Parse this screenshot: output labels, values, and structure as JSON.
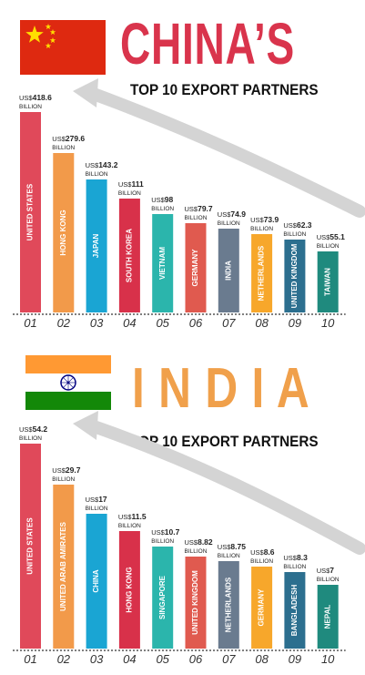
{
  "china": {
    "title": "CHINA’S",
    "subtitle": "TOP 10 EXPORT PARTNERS",
    "title_color": "#d9344c",
    "flag_color": "#de2910",
    "star_color": "#ffde00",
    "value_prefix": "US$",
    "value_unit": "BILLION"
  },
  "india": {
    "title": "I N D I A",
    "subtitle": "TOP 10 EXPORT PARTNERS",
    "title_color": "#f0a04b",
    "flag_colors": [
      "#ff9933",
      "#ffffff",
      "#138808"
    ],
    "chakra_color": "#000080",
    "value_prefix": "US$",
    "value_unit": "BILLION"
  },
  "chart_data": [
    {
      "type": "bar",
      "categories": [
        "UNITED STATES",
        "HONG KONG",
        "JAPAN",
        "SOUTH KOREA",
        "VIETNAM",
        "GERMANY",
        "INDIA",
        "NETHERLANDS",
        "UNITED KINGDOM",
        "TAIWAN"
      ],
      "values": [
        418.6,
        279.6,
        143.2,
        111,
        98,
        79.7,
        74.9,
        73.9,
        62.3,
        55.1
      ],
      "value_labels": [
        "418.6",
        "279.6",
        "143.2",
        "111",
        "98",
        "79.7",
        "74.9",
        "73.9",
        "62.3",
        "55.1"
      ],
      "ranks": [
        "01",
        "02",
        "03",
        "04",
        "05",
        "06",
        "07",
        "08",
        "09",
        "10"
      ],
      "colors": [
        "#e0495a",
        "#f29a4a",
        "#1aa5d3",
        "#d8314a",
        "#2bb5ac",
        "#e05a4f",
        "#6a7b8f",
        "#f7a72b",
        "#2c6f8f",
        "#1f8a7e"
      ],
      "title": "CHINA’S TOP 10 EXPORT PARTNERS"
    },
    {
      "type": "bar",
      "categories": [
        "UNITED STATES",
        "UNITED ARAB AMIRATES",
        "CHINA",
        "HONG KONG",
        "SINGAPORE",
        "UNITED KINGDOM",
        "NETHERLANDS",
        "GERMANY",
        "BANGLADESH",
        "NEPAL"
      ],
      "values": [
        54.2,
        29.7,
        17,
        11.5,
        10.7,
        8.82,
        8.75,
        8.6,
        8.3,
        7
      ],
      "value_labels": [
        "54.2",
        "29.7",
        "17",
        "11.5",
        "10.7",
        "8.82",
        "8.75",
        "8.6",
        "8.3",
        "7"
      ],
      "ranks": [
        "01",
        "02",
        "03",
        "04",
        "05",
        "06",
        "07",
        "08",
        "09",
        "10"
      ],
      "colors": [
        "#e0495a",
        "#f29a4a",
        "#1aa5d3",
        "#d8314a",
        "#2bb5ac",
        "#e05a4f",
        "#6a7b8f",
        "#f7a72b",
        "#2c6f8f",
        "#1f8a7e"
      ],
      "title": "INDIA TOP 10 EXPORT PARTNERS"
    }
  ]
}
